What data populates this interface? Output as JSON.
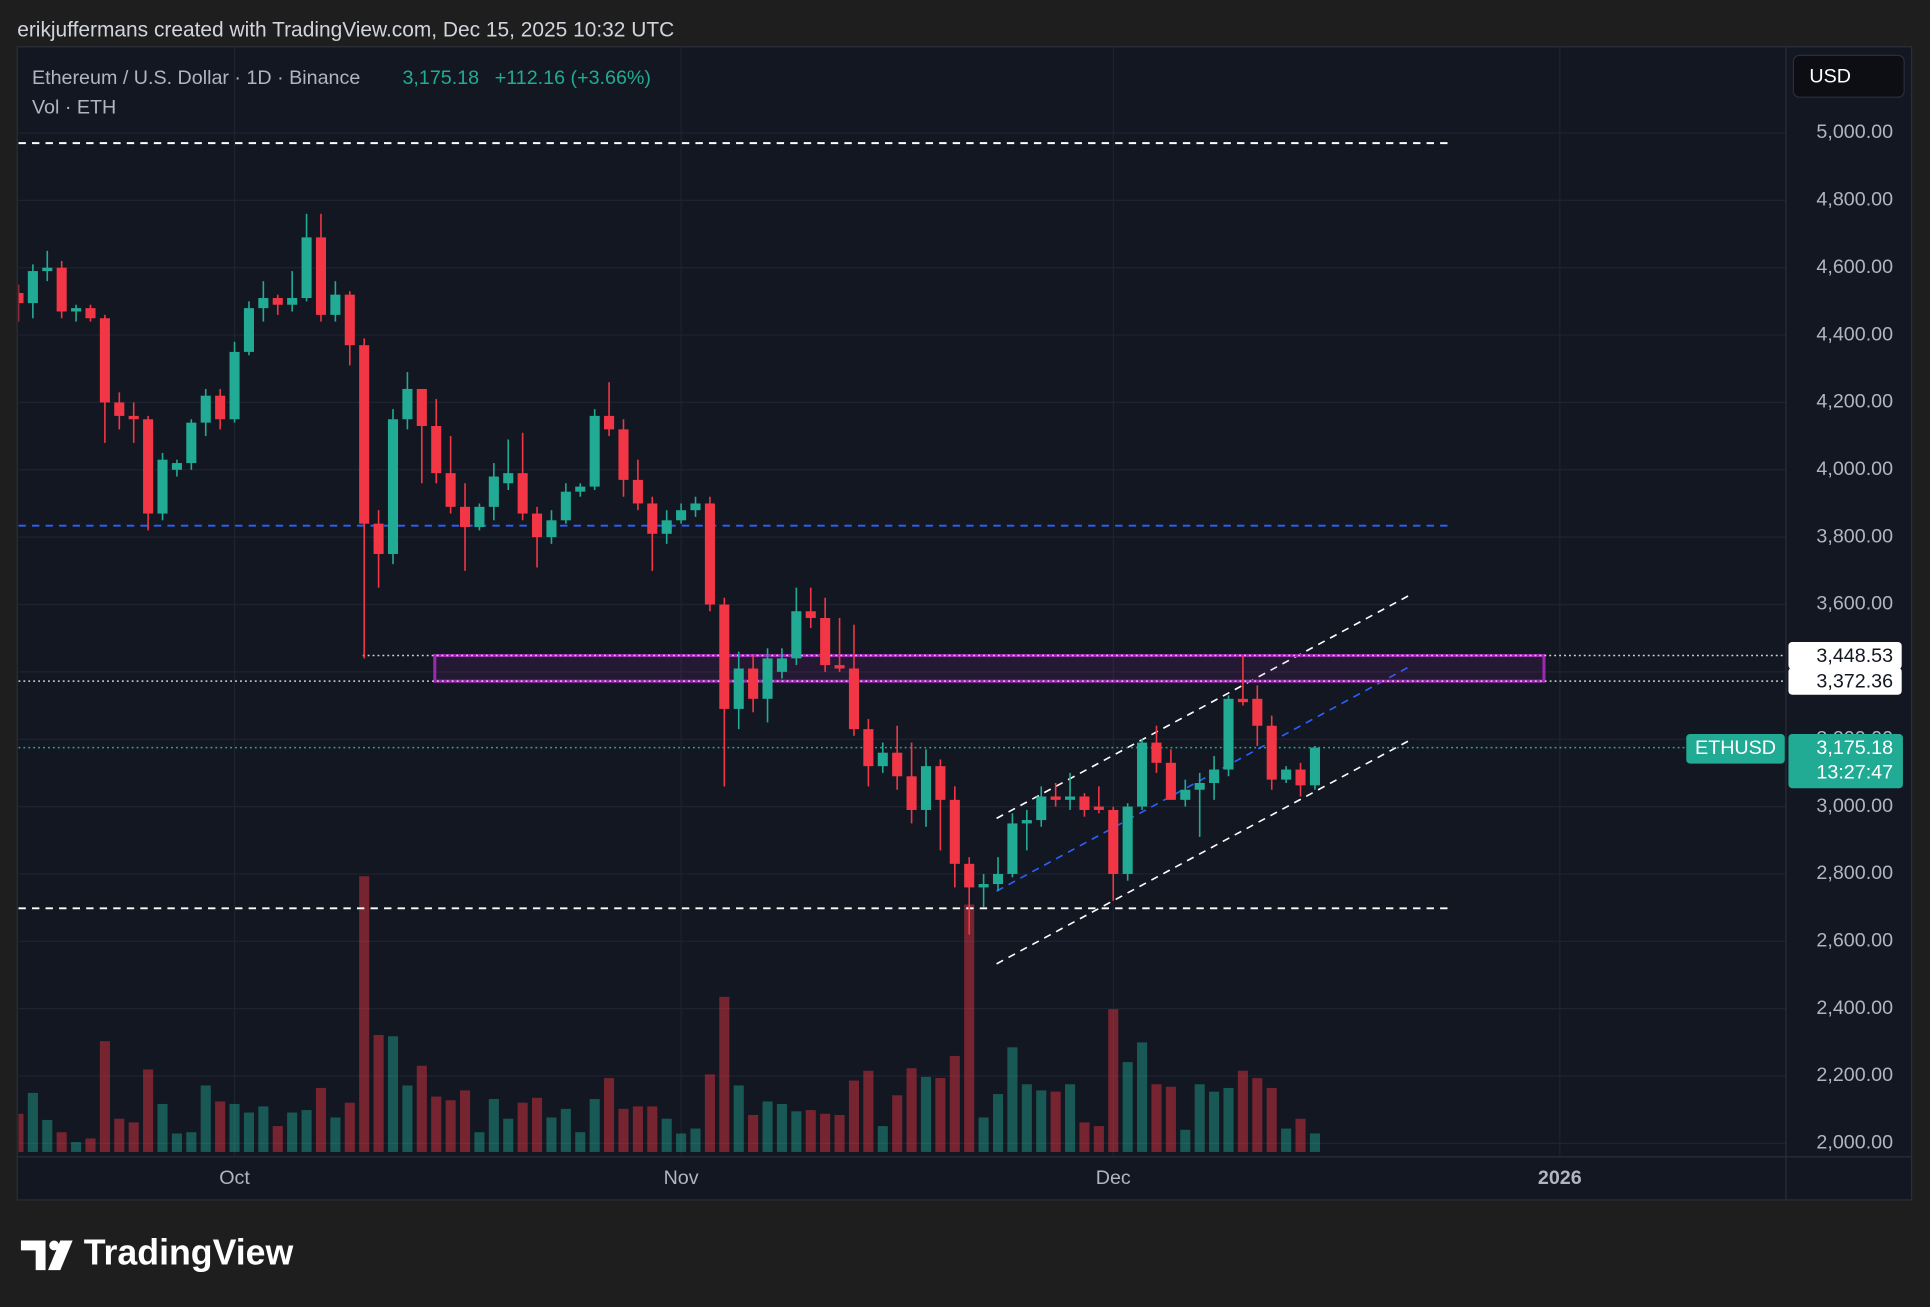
{
  "header": {
    "attribution": "erikjuffermans created with TradingView.com, Dec 15, 2025 10:32 UTC"
  },
  "chart_data": {
    "type": "candlestick",
    "symbol": "Ethereum / U.S. Dollar · 1D · Binance",
    "legend_price": "3,175.18",
    "legend_change": "+112.16 (+3.66%)",
    "volume_label": "Vol · ETH",
    "currency": "USD",
    "up_color": "#22ab94",
    "down_color": "#f23645",
    "open": [
      4525,
      4495,
      4590,
      4600,
      4470,
      4480,
      4450,
      4200,
      4160,
      4150,
      3870,
      4000,
      4020,
      4140,
      4220,
      4150,
      4350,
      4480,
      4510,
      4490,
      4510,
      4690,
      4460,
      4520,
      4370,
      3840,
      3750,
      4150,
      4240,
      4130,
      3990,
      3890,
      3830,
      3890,
      3960,
      3990,
      3870,
      3800,
      3850,
      3935,
      3950,
      4160,
      4120,
      3970,
      3900,
      3810,
      3850,
      3880,
      3900,
      3600,
      3290,
      3410,
      3320,
      3400,
      3440,
      3580,
      3560,
      3420,
      3410,
      3230,
      3120,
      3160,
      3090,
      2990,
      3120,
      3020,
      2830,
      2760,
      2770,
      2800,
      2950,
      2960,
      3030,
      3020,
      3030,
      3000,
      2990,
      2800,
      3000,
      3190,
      3130,
      3020,
      3050,
      3070,
      3110,
      3320,
      3320,
      3240,
      3080,
      3110,
      3063.02
    ],
    "high": [
      4550,
      4610,
      4650,
      4620,
      4490,
      4490,
      4460,
      4230,
      4200,
      4160,
      4050,
      4030,
      4150,
      4240,
      4240,
      4380,
      4500,
      4560,
      4520,
      4590,
      4760,
      4760,
      4560,
      4530,
      4390,
      3880,
      4180,
      4290,
      4240,
      4210,
      4100,
      3960,
      3900,
      4020,
      4090,
      4110,
      3890,
      3880,
      3960,
      3960,
      4180,
      4260,
      4150,
      4030,
      3920,
      3880,
      3900,
      3920,
      3920,
      3620,
      3460,
      3450,
      3470,
      3470,
      3650,
      3650,
      3620,
      3560,
      3540,
      3260,
      3190,
      3240,
      3190,
      3170,
      3140,
      3060,
      2850,
      2800,
      2850,
      2980,
      2990,
      3060,
      3070,
      3100,
      3040,
      3060,
      3000,
      3010,
      3200,
      3240,
      3170,
      3080,
      3100,
      3150,
      3330,
      3448,
      3360,
      3270,
      3120,
      3130,
      3180
    ],
    "low": [
      4440,
      4450,
      4560,
      4450,
      4440,
      4440,
      4080,
      4120,
      4080,
      3820,
      3850,
      3980,
      4000,
      4100,
      4120,
      4140,
      4340,
      4440,
      4460,
      4470,
      4500,
      4440,
      4440,
      4310,
      3440,
      3650,
      3720,
      4120,
      3960,
      3960,
      3870,
      3700,
      3820,
      3850,
      3940,
      3850,
      3710,
      3780,
      3840,
      3920,
      3940,
      4100,
      3920,
      3880,
      3700,
      3780,
      3840,
      3860,
      3580,
      3060,
      3230,
      3280,
      3250,
      3380,
      3420,
      3530,
      3400,
      3400,
      3210,
      3060,
      3100,
      3050,
      2950,
      2940,
      2870,
      2760,
      2620,
      2700,
      2750,
      2790,
      2870,
      2940,
      3000,
      2990,
      2970,
      2980,
      2720,
      2780,
      2990,
      3100,
      3020,
      3000,
      2910,
      3020,
      3090,
      3300,
      3180,
      3050,
      3070,
      3030,
      3050
    ],
    "close": [
      4495,
      4590,
      4600,
      4470,
      4480,
      4450,
      4200,
      4160,
      4150,
      3870,
      4030,
      4020,
      4140,
      4220,
      4150,
      4350,
      4480,
      4510,
      4490,
      4510,
      4690,
      4460,
      4520,
      4370,
      3840,
      3750,
      4150,
      4240,
      4130,
      3990,
      3890,
      3830,
      3890,
      3980,
      3990,
      3870,
      3800,
      3850,
      3935,
      3950,
      4160,
      4120,
      3970,
      3900,
      3810,
      3850,
      3880,
      3900,
      3600,
      3290,
      3410,
      3320,
      3440,
      3440,
      3580,
      3560,
      3420,
      3410,
      3230,
      3120,
      3160,
      3090,
      2990,
      3120,
      3020,
      2830,
      2760,
      2770,
      2800,
      2950,
      2960,
      3030,
      3020,
      3030,
      2990,
      2990,
      2800,
      3000,
      3190,
      3130,
      3020,
      3050,
      3070,
      3110,
      3320,
      3310,
      3240,
      3080,
      3110,
      3063.02,
      3175.18
    ],
    "volume": [
      31,
      48,
      26,
      16,
      8,
      11,
      90,
      27,
      24,
      67,
      39,
      15,
      16,
      54,
      41,
      39,
      32,
      37,
      21,
      32,
      34,
      52,
      28,
      40,
      224,
      95,
      94,
      54,
      70,
      45,
      42,
      50,
      16,
      43,
      27,
      40,
      44,
      28,
      35,
      16,
      43,
      60,
      35,
      37,
      37,
      27,
      15,
      19,
      63,
      126,
      54,
      30,
      41,
      39,
      33,
      34,
      31,
      30,
      58,
      66,
      21,
      46,
      68,
      61,
      60,
      78,
      201,
      28,
      47,
      85,
      55,
      50,
      49,
      55,
      24,
      21,
      116,
      73,
      89,
      55,
      53,
      18,
      55,
      49,
      52,
      66,
      60,
      52,
      19,
      27,
      15
    ],
    "volume_lim": [
      0,
      240
    ],
    "xlim": [
      0,
      122.7
    ],
    "xticks": [
      {
        "value": 15,
        "label": "Oct"
      },
      {
        "value": 46,
        "label": "Nov"
      },
      {
        "value": 76,
        "label": "Dec"
      },
      {
        "value": 107,
        "label": "2026"
      }
    ],
    "ylim": [
      1960,
      5256
    ],
    "yticks": [
      {
        "value": 2000,
        "label": "2,000.00"
      },
      {
        "value": 2200,
        "label": "2,200.00"
      },
      {
        "value": 2400,
        "label": "2,400.00"
      },
      {
        "value": 2600,
        "label": "2,600.00"
      },
      {
        "value": 2800,
        "label": "2,800.00"
      },
      {
        "value": 3000,
        "label": "3,000.00"
      },
      {
        "value": 3200,
        "label": "3,200.00"
      },
      {
        "value": 3400,
        "label": "3,400.00"
      },
      {
        "value": 3600,
        "label": "3,600.00"
      },
      {
        "value": 3800,
        "label": "3,800.00"
      },
      {
        "value": 4000,
        "label": "4,000.00"
      },
      {
        "value": 4200,
        "label": "4,200.00"
      },
      {
        "value": 4400,
        "label": "4,400.00"
      },
      {
        "value": 4600,
        "label": "4,600.00"
      },
      {
        "value": 4800,
        "label": "4,800.00"
      },
      {
        "value": 5000,
        "label": "5,000.00"
      }
    ],
    "grid": true,
    "levels": [
      {
        "value": 4970,
        "color": "#ffffff",
        "xrange": [
          0,
          99.6
        ]
      },
      {
        "value": 3834,
        "color": "#2962ff",
        "xrange": [
          0,
          99.6
        ]
      },
      {
        "value": 2698,
        "color": "#ffffff",
        "xrange": [
          0,
          99.6
        ]
      }
    ],
    "marked_prices": [
      {
        "value": 3448.53,
        "label": "3,448.53",
        "start": 23.9
      },
      {
        "value": 3372.36,
        "label": "3,372.36",
        "start": 0
      }
    ],
    "zone": {
      "x": [
        28.9,
        105.9
      ],
      "y": [
        3372.36,
        3448.53
      ],
      "color": "#9c27b0"
    },
    "channel": [
      {
        "color": "#ffffff",
        "x": [
          67.9,
          96.8
        ],
        "y": [
          2965,
          3633
        ]
      },
      {
        "color": "#2962ff",
        "x": [
          67.9,
          96.8
        ],
        "y": [
          2749,
          3421
        ]
      },
      {
        "color": "#ffffff",
        "x": [
          67.9,
          96.8
        ],
        "y": [
          2533,
          3202
        ]
      }
    ],
    "last_price": {
      "value": 3175.18,
      "label": "3,175.18",
      "symbol": "ETHUSD",
      "countdown": "13:27:47"
    }
  },
  "logo": "TradingView"
}
